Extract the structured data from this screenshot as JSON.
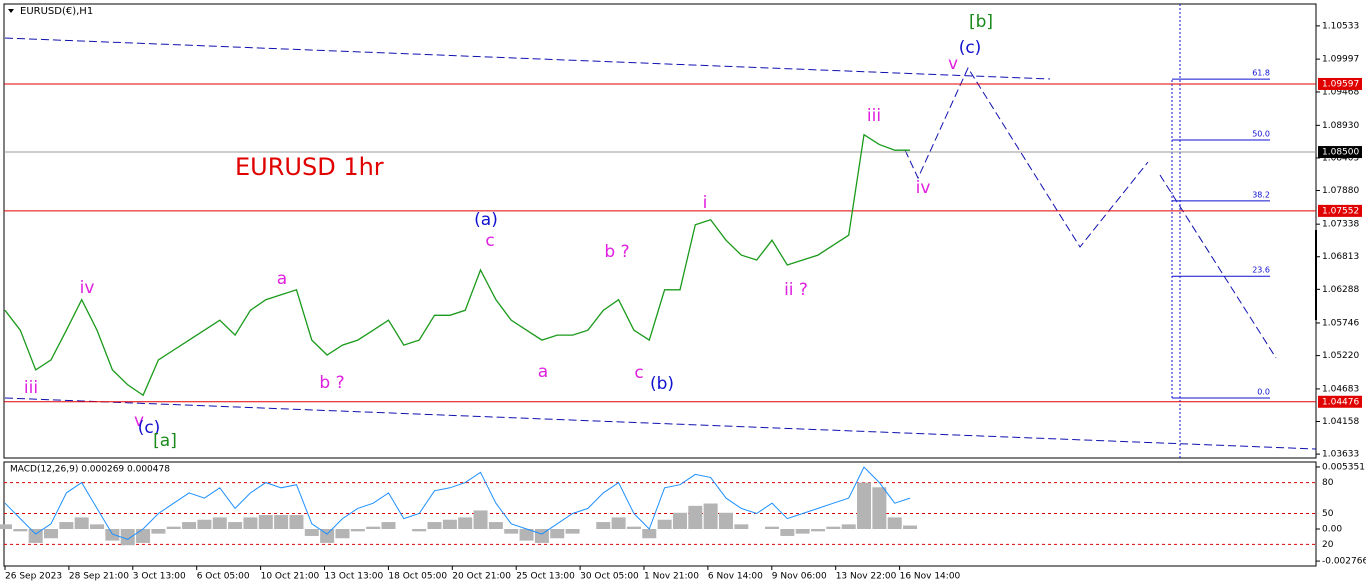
{
  "chart_data": {
    "type": "line",
    "title": "EURUSD(€),H1",
    "annotation": "EURUSD 1hr",
    "price": {
      "color": "#1a9a1a",
      "values": [
        1.0595,
        1.0563,
        1.0499,
        1.0515,
        1.0563,
        1.0612,
        1.0563,
        1.0499,
        1.0475,
        1.0458,
        1.0515,
        1.0531,
        1.0547,
        1.0563,
        1.0579,
        1.0555,
        1.0595,
        1.0612,
        1.062,
        1.0628,
        1.0547,
        1.0523,
        1.0539,
        1.0547,
        1.0563,
        1.0579,
        1.0539,
        1.0547,
        1.0587,
        1.0587,
        1.0595,
        1.066,
        1.0612,
        1.0579,
        1.0563,
        1.0547,
        1.0555,
        1.0555,
        1.0563,
        1.0595,
        1.0612,
        1.0563,
        1.0547,
        1.0628,
        1.0628,
        1.0733,
        1.0741,
        1.0708,
        1.0684,
        1.0676,
        1.0708,
        1.0668,
        1.0676,
        1.0684,
        1.07,
        1.0716,
        1.0878,
        1.0862,
        1.0853,
        1.0853
      ]
    },
    "ylim": [
      1.0357,
      1.1095
    ],
    "yticks": [
      1.10533,
      1.09997,
      1.09468,
      {
        "value": 1.0893,
        "label": "1.08930"
      },
      1.08405,
      {
        "value": 1.0788,
        "label": "1.07880"
      },
      1.07338,
      1.06813,
      1.06288,
      1.05746,
      {
        "value": 1.0522,
        "label": "1.05220"
      },
      1.04683,
      1.04158,
      1.03633
    ],
    "price_levels": [
      {
        "value": 1.09597,
        "color": "#e00000"
      },
      {
        "value": 1.085,
        "label": "1.08500",
        "color": "#000000"
      },
      {
        "value": 1.07552,
        "color": "#e00000"
      },
      {
        "value": 1.04476,
        "color": "#e00000"
      }
    ],
    "fib_levels": [
      61.8,
      {
        "value": 50,
        "label": "50.0"
      },
      38.2,
      23.6,
      {
        "value": 0,
        "label": "0.0"
      }
    ],
    "wave_labels": [
      {
        "text": "[b]",
        "color": "#1a8a1a"
      },
      {
        "text": "(c)",
        "color": "#1010d0"
      },
      {
        "text": "v",
        "color": "#e020e0"
      },
      {
        "text": "iii",
        "color": "#e020e0"
      },
      {
        "text": "iv",
        "color": "#e020e0"
      },
      {
        "text": "i",
        "color": "#e020e0"
      },
      {
        "text": "ii ?",
        "color": "#e020e0"
      },
      {
        "text": "(a)",
        "color": "#1010d0"
      },
      {
        "text": "c",
        "color": "#e020e0"
      },
      {
        "text": "b ?",
        "color": "#e020e0"
      },
      {
        "text": "a",
        "color": "#e020e0"
      },
      {
        "text": "b ?",
        "color": "#e020e0"
      },
      {
        "text": "a",
        "color": "#e020e0"
      },
      {
        "text": "c",
        "color": "#e020e0"
      },
      {
        "text": "(b)",
        "color": "#1010d0"
      },
      {
        "text": "iv",
        "color": "#e020e0"
      },
      {
        "text": "iii",
        "color": "#e020e0"
      },
      {
        "text": "v",
        "color": "#e020e0"
      },
      {
        "text": "(c)",
        "color": "#1010d0"
      },
      {
        "text": "[a]",
        "color": "#1a8a1a"
      }
    ],
    "xticks": [
      "26 Sep 2023",
      "28 Sep 21:00",
      "3 Oct 13:00",
      "6 Oct 05:00",
      "10 Oct 21:00",
      "13 Oct 13:00",
      "18 Oct 05:00",
      "20 Oct 21:00",
      "25 Oct 13:00",
      "30 Oct 05:00",
      "1 Nov 21:00",
      "6 Nov 14:00",
      "9 Nov 06:00",
      "13 Nov 22:00",
      "16 Nov 14:00"
    ],
    "indicator": {
      "label": "MACD(12,26,9) 0.000269 0.000478",
      "macd": {
        "color": "#b4b4b4",
        "values": [
          0.0004,
          -0.0002,
          -0.0012,
          -0.0008,
          0.0006,
          0.001,
          0.0004,
          -0.001,
          -0.0014,
          -0.0012,
          -0.0004,
          0.0002,
          0.0006,
          0.0008,
          0.001,
          0.0006,
          0.001,
          0.0012,
          0.0012,
          0.0012,
          -0.0006,
          -0.0012,
          -0.0008,
          -0.0002,
          0.0002,
          0.0006,
          0,
          -0.0002,
          0.0006,
          0.0008,
          0.001,
          0.0016,
          0.0006,
          -0.0004,
          -0.001,
          -0.0012,
          -0.0008,
          -0.0004,
          0,
          0.0006,
          0.001,
          0.0002,
          -0.0008,
          0.0008,
          0.0014,
          0.002,
          0.0022,
          0.0014,
          0.0004,
          0,
          0.0002,
          -0.0006,
          -0.0004,
          -0.0002,
          0.0002,
          0.0004,
          0.004,
          0.0036,
          0.001,
          0.0003
        ]
      },
      "ylim": [
        -0.00276,
        0.00578
      ],
      "yticks": [
        0.005351,
        {
          "value": 0,
          "label": "0.00"
        },
        -0.002766
      ],
      "oscillator": {
        "color": "#1e90ff",
        "values": [
          60,
          45,
          30,
          40,
          70,
          80,
          55,
          30,
          25,
          35,
          50,
          60,
          70,
          65,
          75,
          55,
          70,
          80,
          75,
          78,
          40,
          30,
          45,
          55,
          60,
          70,
          45,
          50,
          72,
          75,
          80,
          90,
          60,
          40,
          35,
          30,
          40,
          50,
          55,
          70,
          80,
          50,
          35,
          75,
          78,
          88,
          85,
          65,
          55,
          50,
          60,
          45,
          50,
          55,
          60,
          65,
          95,
          80,
          60,
          65
        ]
      },
      "osc_lim": [
        0,
        100
      ],
      "osc_levels": [
        80,
        50,
        20
      ]
    }
  }
}
